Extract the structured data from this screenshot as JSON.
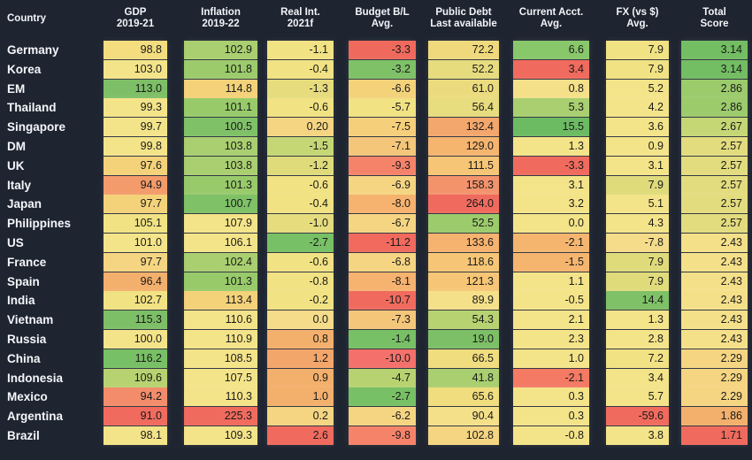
{
  "chart_data": {
    "type": "heatmap",
    "corner_label": "Country",
    "columns": [
      {
        "line1": "GDP",
        "line2": "2019-21"
      },
      {
        "line1": "Inflation",
        "line2": "2019-22"
      },
      {
        "line1": "Real Int.",
        "line2": "2021f"
      },
      {
        "line1": "Budget B/L",
        "line2": "Avg."
      },
      {
        "line1": "Public Debt",
        "line2": "Last available"
      },
      {
        "line1": "Current Acct.",
        "line2": "Avg."
      },
      {
        "line1": "FX  (vs $)",
        "line2": "Avg."
      },
      {
        "line1": "Total",
        "line2": "Score"
      }
    ],
    "rows": [
      {
        "country": "Germany",
        "values": [
          "98.8",
          "102.9",
          "-1.1",
          "-3.3",
          "72.2",
          "6.6",
          "7.9",
          "3.14"
        ],
        "colors": [
          "#f3dd7e",
          "#a9cf70",
          "#f1e283",
          "#ef6a5d",
          "#f0d97c",
          "#88c86b",
          "#f1e283",
          "#73bd63"
        ]
      },
      {
        "country": "Korea",
        "values": [
          "103.0",
          "101.8",
          "-0.4",
          "-3.2",
          "52.2",
          "3.4",
          "7.9",
          "3.14"
        ],
        "colors": [
          "#f4e489",
          "#9ccb6c",
          "#f1e283",
          "#7fc167",
          "#e6dc7e",
          "#f06b5e",
          "#f1e283",
          "#73bd63"
        ]
      },
      {
        "country": "EM",
        "values": [
          "113.0",
          "114.8",
          "-1.3",
          "-6.6",
          "61.0",
          "0.8",
          "5.2",
          "2.86"
        ],
        "colors": [
          "#7dbf66",
          "#f3d27a",
          "#e6dc7d",
          "#f3d27a",
          "#ecdb7e",
          "#f5e08a",
          "#f4e489",
          "#9ccb6c"
        ]
      },
      {
        "country": "Thailand",
        "values": [
          "99.3",
          "101.1",
          "-0.6",
          "-5.7",
          "56.4",
          "5.3",
          "4.2",
          "2.86"
        ],
        "colors": [
          "#f4e489",
          "#98ca6a",
          "#f1e283",
          "#f1e283",
          "#e7dc7e",
          "#a9cf70",
          "#f4e489",
          "#9ccb6c"
        ]
      },
      {
        "country": "Singapore",
        "values": [
          "99.7",
          "100.5",
          "0.20",
          "-7.5",
          "132.4",
          "15.5",
          "3.6",
          "2.67"
        ],
        "colors": [
          "#f4e489",
          "#7fc167",
          "#f5d582",
          "#f6cf7b",
          "#f3a76c",
          "#6cbb62",
          "#f4e489",
          "#c5d775"
        ]
      },
      {
        "country": "DM",
        "values": [
          "99.8",
          "103.8",
          "-1.5",
          "-7.1",
          "129.0",
          "1.3",
          "0.9",
          "2.57"
        ],
        "colors": [
          "#f4e489",
          "#a9cf70",
          "#c5d775",
          "#f3c67a",
          "#f5b56f",
          "#f4e489",
          "#f4e489",
          "#e3dc7e"
        ]
      },
      {
        "country": "UK",
        "values": [
          "97.6",
          "103.8",
          "-1.2",
          "-9.3",
          "111.5",
          "-3.3",
          "3.1",
          "2.57"
        ],
        "colors": [
          "#f3d27a",
          "#a9cf70",
          "#dfdb7b",
          "#f5836a",
          "#f6c676",
          "#f06b5e",
          "#f4e489",
          "#e3dc7e"
        ]
      },
      {
        "country": "Italy",
        "values": [
          "94.9",
          "101.3",
          "-0.6",
          "-6.9",
          "158.3",
          "3.1",
          "7.9",
          "2.57"
        ],
        "colors": [
          "#f39b6a",
          "#98ca6a",
          "#f1e283",
          "#f5d582",
          "#f3936c",
          "#f4e489",
          "#dfdb7b",
          "#e3dc7e"
        ]
      },
      {
        "country": "Japan",
        "values": [
          "97.7",
          "100.7",
          "-0.4",
          "-8.0",
          "264.0",
          "3.2",
          "5.1",
          "2.57"
        ],
        "colors": [
          "#f3d27a",
          "#7fc167",
          "#f1e283",
          "#f6b26f",
          "#f06b5e",
          "#f4e489",
          "#f4e489",
          "#e3dc7e"
        ]
      },
      {
        "country": "Philippines",
        "values": [
          "105.1",
          "107.9",
          "-1.0",
          "-6.7",
          "52.5",
          "0.0",
          "4.3",
          "2.57"
        ],
        "colors": [
          "#f1e283",
          "#f4e489",
          "#e6dc7e",
          "#f5d582",
          "#9ccb6c",
          "#f4e489",
          "#f4e489",
          "#e3dc7e"
        ]
      },
      {
        "country": "US",
        "values": [
          "101.0",
          "106.1",
          "-2.7",
          "-11.2",
          "133.6",
          "-2.1",
          "-7.8",
          "2.43"
        ],
        "colors": [
          "#f4e489",
          "#f4e489",
          "#78c065",
          "#f26a5e",
          "#f6b26f",
          "#f5b56f",
          "#f5dc8a",
          "#f5e08a"
        ]
      },
      {
        "country": "France",
        "values": [
          "97.7",
          "102.4",
          "-0.6",
          "-6.8",
          "118.6",
          "-1.5",
          "7.9",
          "2.43"
        ],
        "colors": [
          "#f5d582",
          "#a9cf70",
          "#f1e283",
          "#f5d582",
          "#f6c676",
          "#f5b56f",
          "#dfdb7b",
          "#f5e08a"
        ]
      },
      {
        "country": "Spain",
        "values": [
          "96.4",
          "101.3",
          "-0.8",
          "-8.1",
          "121.3",
          "1.1",
          "7.9",
          "2.43"
        ],
        "colors": [
          "#f3b06c",
          "#98ca6a",
          "#f1e283",
          "#f6b26f",
          "#f6c676",
          "#f4e489",
          "#dfdb7b",
          "#f5e08a"
        ]
      },
      {
        "country": "India",
        "values": [
          "102.7",
          "113.4",
          "-0.2",
          "-10.7",
          "89.9",
          "-0.5",
          "14.4",
          "2.43"
        ],
        "colors": [
          "#f1e283",
          "#f3d27a",
          "#f1e283",
          "#f06b5e",
          "#f5e08a",
          "#f4e489",
          "#7fc167",
          "#f5e08a"
        ]
      },
      {
        "country": "Vietnam",
        "values": [
          "115.3",
          "110.6",
          "0.0",
          "-7.3",
          "54.3",
          "2.1",
          "1.3",
          "2.43"
        ],
        "colors": [
          "#7dbf66",
          "#f4e489",
          "#f5dc8a",
          "#f3c67a",
          "#b7d270",
          "#f4e489",
          "#f4e489",
          "#f5e08a"
        ]
      },
      {
        "country": "Russia",
        "values": [
          "100.0",
          "110.9",
          "0.8",
          "-1.4",
          "19.0",
          "2.3",
          "2.8",
          "2.43"
        ],
        "colors": [
          "#f4e489",
          "#f4e489",
          "#f3b06c",
          "#78c065",
          "#7dbf66",
          "#f4e489",
          "#f4e489",
          "#f5e08a"
        ]
      },
      {
        "country": "China",
        "values": [
          "116.2",
          "108.5",
          "1.2",
          "-10.0",
          "66.5",
          "1.0",
          "7.2",
          "2.29"
        ],
        "colors": [
          "#78c065",
          "#f4e489",
          "#f3a66a",
          "#f3716a",
          "#f0dd7e",
          "#f4e489",
          "#f1e283",
          "#f5d582"
        ]
      },
      {
        "country": "Indonesia",
        "values": [
          "109.6",
          "107.5",
          "0.9",
          "-4.7",
          "41.8",
          "-2.1",
          "3.4",
          "2.29"
        ],
        "colors": [
          "#b7d270",
          "#f4e489",
          "#f3b06c",
          "#b7d270",
          "#a9cf70",
          "#f47a64",
          "#f4e489",
          "#f5d582"
        ]
      },
      {
        "country": "Mexico",
        "values": [
          "94.2",
          "110.3",
          "1.0",
          "-2.7",
          "65.6",
          "0.3",
          "5.7",
          "2.29"
        ],
        "colors": [
          "#f38c6a",
          "#f4e489",
          "#f3b06c",
          "#78c065",
          "#f0dd7e",
          "#f4e489",
          "#f4e489",
          "#f5d582"
        ]
      },
      {
        "country": "Argentina",
        "values": [
          "91.0",
          "225.3",
          "0.2",
          "-6.2",
          "90.4",
          "0.3",
          "-59.6",
          "1.86"
        ],
        "colors": [
          "#f06b5e",
          "#f06b5e",
          "#f5d582",
          "#f5d582",
          "#f5e08a",
          "#f4e489",
          "#f06b5e",
          "#f3b06c"
        ]
      },
      {
        "country": "Brazil",
        "values": [
          "98.1",
          "109.3",
          "2.6",
          "-9.8",
          "102.8",
          "-0.8",
          "3.8",
          "1.71"
        ],
        "colors": [
          "#f4e489",
          "#f4e489",
          "#f06b5e",
          "#f5836a",
          "#f5d582",
          "#f4e489",
          "#f4e489",
          "#f06b5e"
        ]
      }
    ]
  }
}
